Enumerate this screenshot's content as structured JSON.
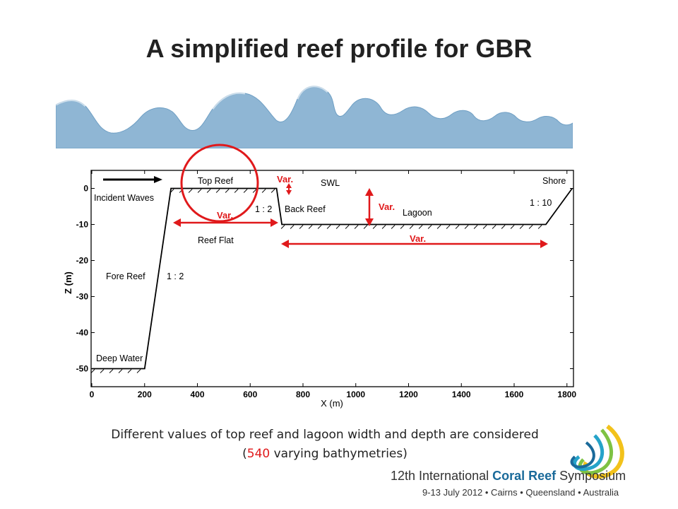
{
  "slide": {
    "title": "A simplified reef profile for GBR"
  },
  "caption": {
    "line1": "Different values of top reef and lagoon width and depth are considered",
    "line2_open": "(",
    "line2_highlight": "540",
    "line2_rest": " varying bathymetries)"
  },
  "plot": {
    "xlabel": "X (m)",
    "ylabel": "Z (m)",
    "x_ticks": [
      "0",
      "200",
      "400",
      "600",
      "800",
      "1000",
      "1200",
      "1400",
      "1600",
      "1800"
    ],
    "y_ticks": [
      "0",
      "-10",
      "-20",
      "-30",
      "-40",
      "-50"
    ],
    "xlim": [
      0,
      1800
    ],
    "ylim": [
      -55,
      5
    ],
    "profile": [
      [
        0,
        -50
      ],
      [
        200,
        -50
      ],
      [
        300,
        0
      ],
      [
        700,
        0
      ],
      [
        720,
        -10
      ],
      [
        1720,
        -10
      ],
      [
        1820,
        0
      ]
    ],
    "labels": {
      "top_reef": "Top Reef",
      "swl": "SWL",
      "shore": "Shore",
      "incident_waves": "Incident Waves",
      "back_reef": "Back Reef",
      "lagoon": "Lagoon",
      "reef_flat": "Reef Flat",
      "fore_reef": "Fore Reef",
      "deep_water": "Deep Water",
      "slope_back": "1 : 2",
      "slope_fore": "1 : 2",
      "slope_shore": "1 : 10"
    },
    "var_labels": {
      "top_depth": "Var.",
      "reef_width": "Var.",
      "lagoon_depth": "Var.",
      "lagoon_width": "Var."
    },
    "colors": {
      "annotation": "#e0191b",
      "line": "#000000",
      "wave": "#8fb6d4"
    }
  },
  "logo": {
    "line1_prefix": "12th International ",
    "line1_bold": "Coral Reef",
    "line1_suffix": " Symposium",
    "line2": "9-13 July 2012 • Cairns • Queensland • Australia"
  }
}
